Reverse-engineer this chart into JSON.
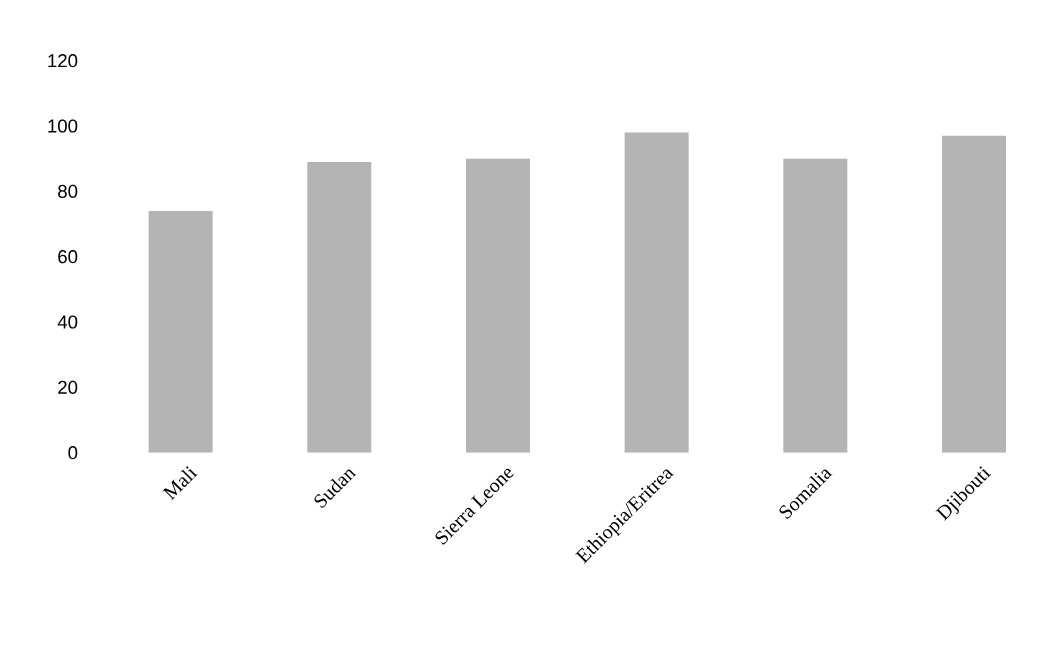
{
  "chart_data": {
    "type": "bar",
    "categories": [
      "Mali",
      "Sudan",
      "Sierra Leone",
      "Ethiopia/Eritrea",
      "Somalia",
      "Djibouti"
    ],
    "values": [
      74,
      89,
      90,
      98,
      90,
      97
    ],
    "color": "#b4b4b4",
    "ylim": [
      0,
      120
    ],
    "yticks": [
      0,
      20,
      40,
      60,
      80,
      100,
      120
    ]
  }
}
